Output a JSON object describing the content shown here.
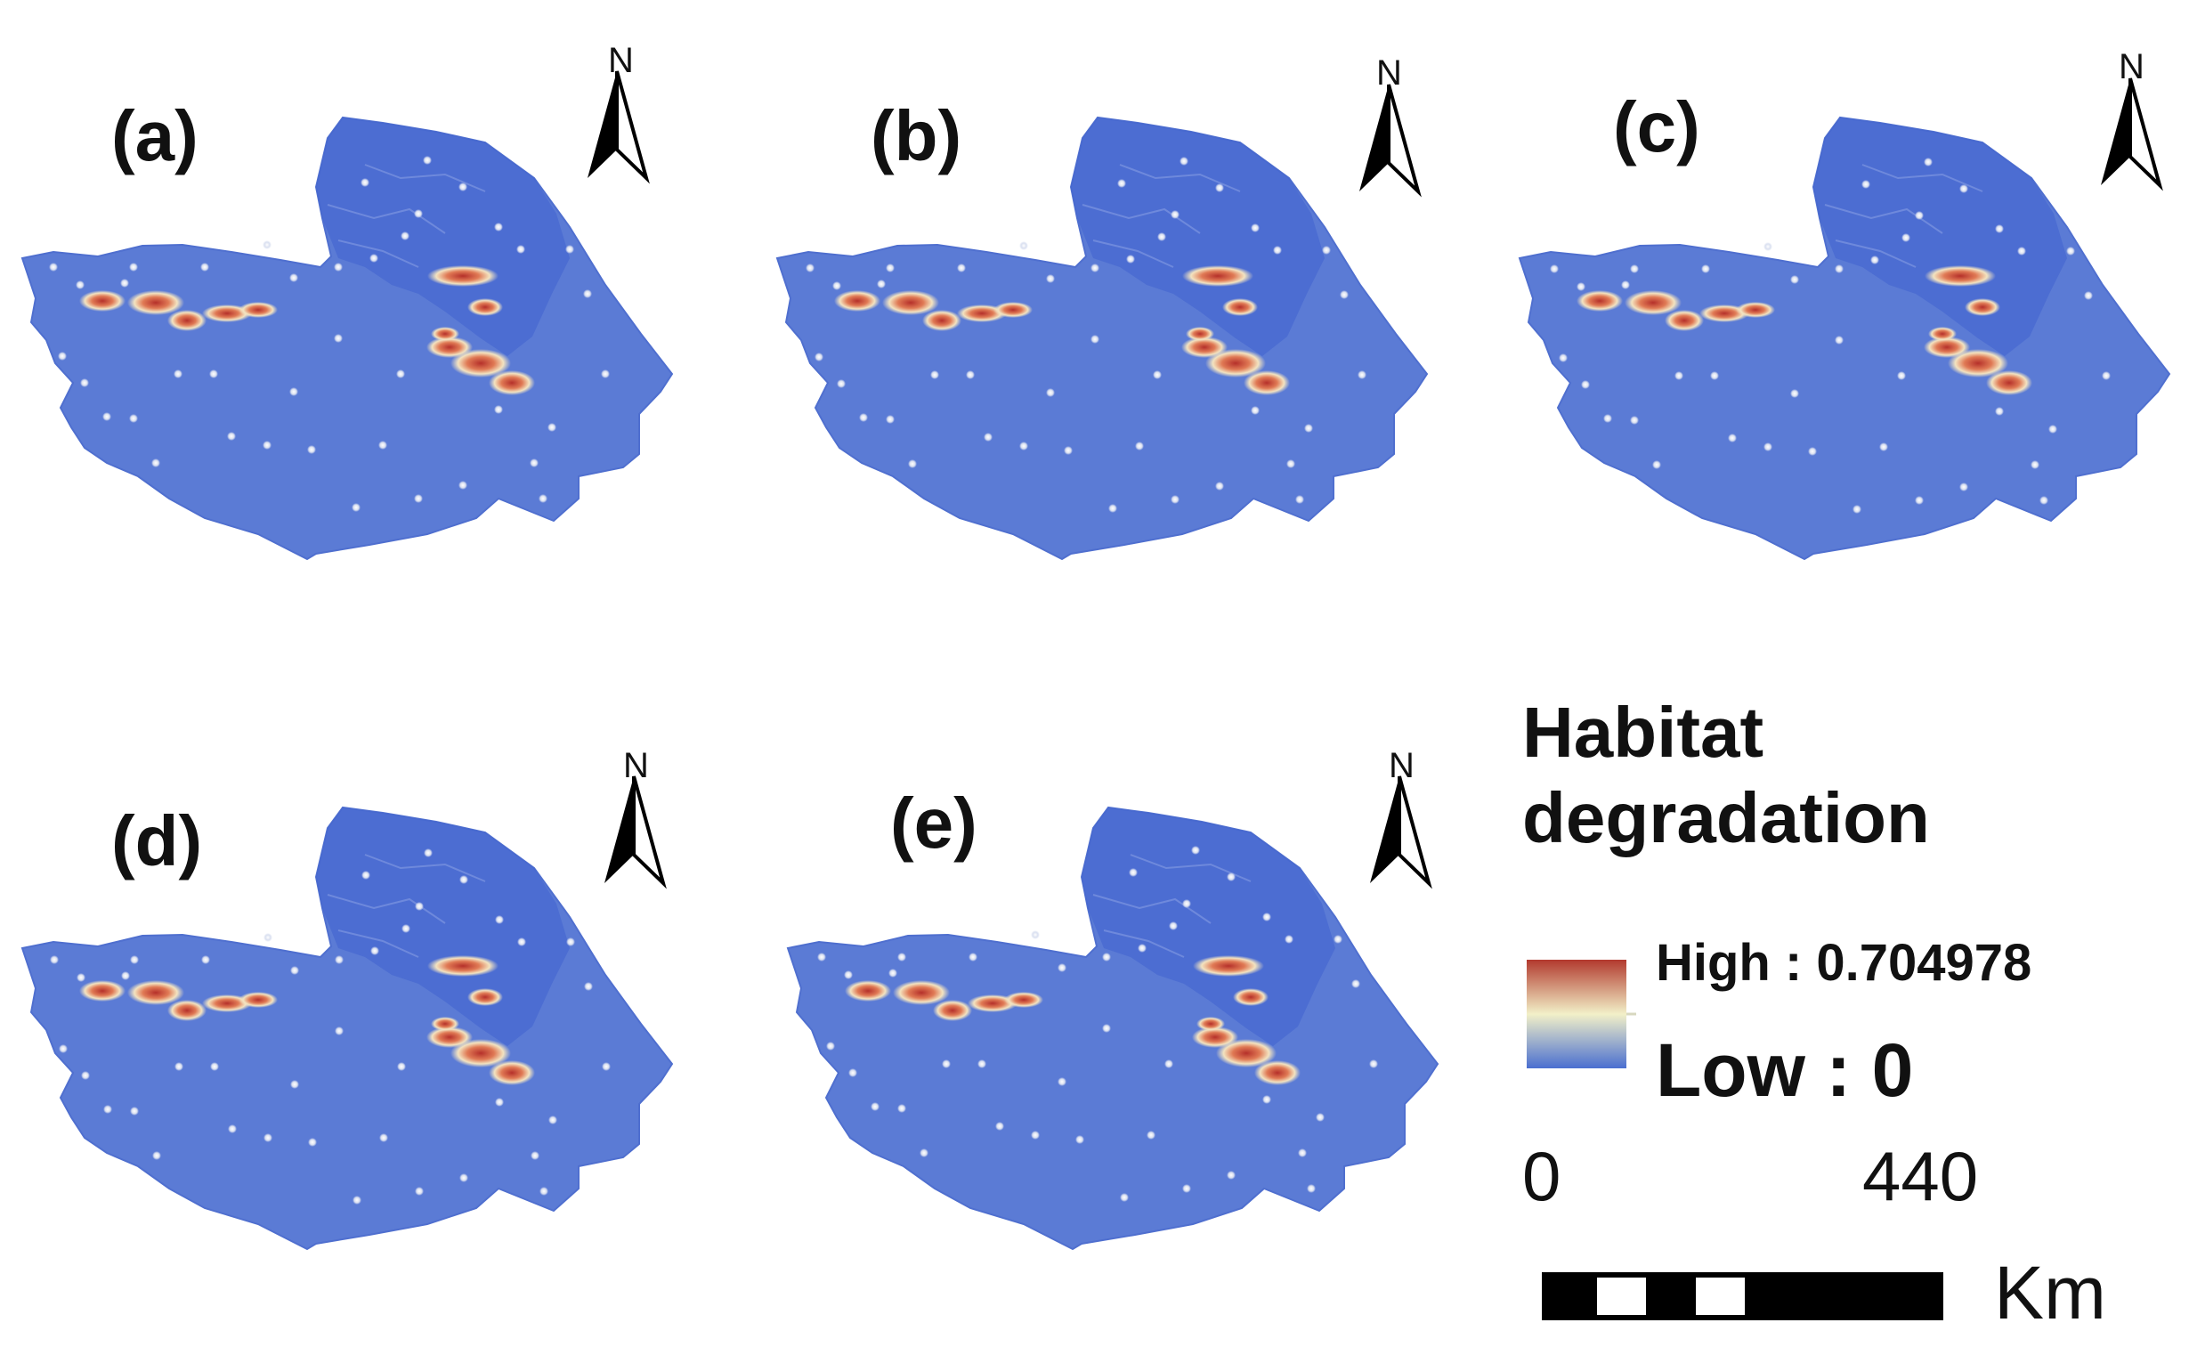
{
  "panels": [
    {
      "label": "(a)",
      "north": "N"
    },
    {
      "label": "(b)",
      "north": "N"
    },
    {
      "label": "(c)",
      "north": "N"
    },
    {
      "label": "(d)",
      "north": "N"
    },
    {
      "label": "(e)",
      "north": "N"
    }
  ],
  "legend": {
    "title_line1": "Habitat",
    "title_line2": "degradation",
    "high_label": "High : 0.704978",
    "low_label": "Low : 0",
    "high_value": 0.704978,
    "low_value": 0,
    "ramp_colors": [
      "#b23a2e",
      "#f2f0c8",
      "#4a6fd0"
    ]
  },
  "scale_bar": {
    "start_label": "0",
    "end_label": "440",
    "unit": "Km"
  },
  "colors": {
    "region_fill": "#5b7bd5",
    "region_dark": "#3f62cf",
    "hotspot_high": "#c0392b",
    "hotspot_mid": "#f2e6c0"
  }
}
